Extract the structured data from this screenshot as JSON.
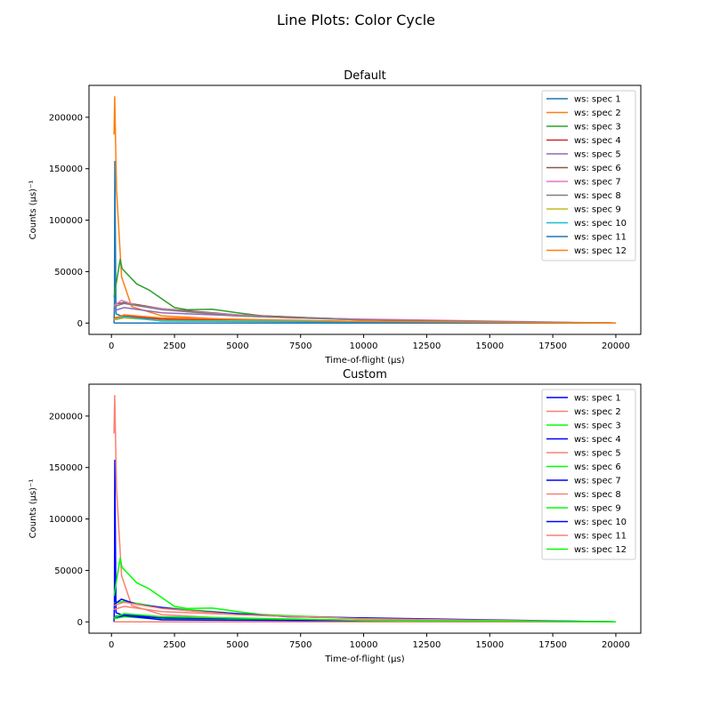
{
  "figure_title": "Line Plots: Color Cycle",
  "chart_data": [
    {
      "type": "line",
      "title": "Default",
      "xlabel": "Time-of-flight (μs)",
      "ylabel": "Counts (μs)⁻¹",
      "xlim": [
        -890,
        20990
      ],
      "ylim": [
        -11000,
        231000
      ],
      "xticks": [
        0,
        2500,
        5000,
        7500,
        10000,
        12500,
        15000,
        17500,
        20000
      ],
      "yticks": [
        0,
        50000,
        100000,
        150000,
        200000
      ],
      "grid": false,
      "legend_position": "top-right",
      "colors": [
        "#1f77b4",
        "#ff7f0e",
        "#2ca02c",
        "#d62728",
        "#9467bd",
        "#8c564b",
        "#e377c2",
        "#7f7f7f",
        "#bcbd22",
        "#17becf",
        "#1f77b4",
        "#ff7f0e"
      ],
      "series_ref": "series"
    },
    {
      "type": "line",
      "title": "Custom",
      "xlabel": "Time-of-flight (μs)",
      "ylabel": "Counts (μs)⁻¹",
      "xlim": [
        -890,
        20990
      ],
      "ylim": [
        -11000,
        231000
      ],
      "xticks": [
        0,
        2500,
        5000,
        7500,
        10000,
        12500,
        15000,
        17500,
        20000
      ],
      "yticks": [
        0,
        50000,
        100000,
        150000,
        200000
      ],
      "grid": false,
      "legend_position": "top-right",
      "colors": [
        "#0000ff",
        "#fa8072",
        "#00ff00",
        "#0000ff",
        "#fa8072",
        "#00ff00",
        "#0000ff",
        "#fa8072",
        "#00ff00",
        "#0000ff",
        "#fa8072",
        "#00ff00"
      ],
      "series_ref": "series"
    }
  ],
  "series": [
    {
      "name": "ws: spec 1",
      "points": [
        [
          100,
          0
        ],
        [
          120,
          20000
        ],
        [
          135,
          157000
        ],
        [
          180,
          9000
        ],
        [
          500,
          6000
        ],
        [
          2500,
          3000
        ],
        [
          10000,
          800
        ],
        [
          20000,
          0
        ]
      ]
    },
    {
      "name": "ws: spec 2",
      "points": [
        [
          100,
          183000
        ],
        [
          130,
          220000
        ],
        [
          200,
          130000
        ],
        [
          400,
          45000
        ],
        [
          800,
          16000
        ],
        [
          2000,
          7000
        ],
        [
          5000,
          3000
        ],
        [
          12000,
          1000
        ],
        [
          20000,
          0
        ]
      ]
    },
    {
      "name": "ws: spec 3",
      "points": [
        [
          100,
          25000
        ],
        [
          300,
          55000
        ],
        [
          350,
          62000
        ],
        [
          420,
          53000
        ],
        [
          1000,
          38000
        ],
        [
          1500,
          32000
        ],
        [
          2500,
          15000
        ],
        [
          3000,
          13000
        ],
        [
          4000,
          13500
        ],
        [
          5000,
          10000
        ],
        [
          6000,
          7000
        ],
        [
          8000,
          5000
        ],
        [
          12000,
          2000
        ],
        [
          20000,
          0
        ]
      ]
    },
    {
      "name": "ws: spec 4",
      "points": [
        [
          100,
          5000
        ],
        [
          500,
          7000
        ],
        [
          2000,
          4000
        ],
        [
          8000,
          1500
        ],
        [
          20000,
          0
        ]
      ]
    },
    {
      "name": "ws: spec 5",
      "points": [
        [
          100,
          12000
        ],
        [
          500,
          15000
        ],
        [
          2000,
          10000
        ],
        [
          6000,
          6000
        ],
        [
          10000,
          3000
        ],
        [
          20000,
          0
        ]
      ]
    },
    {
      "name": "ws: spec 6",
      "points": [
        [
          100,
          18000
        ],
        [
          500,
          20000
        ],
        [
          2000,
          14000
        ],
        [
          5000,
          8000
        ],
        [
          8000,
          5000
        ],
        [
          12000,
          2000
        ],
        [
          20000,
          0
        ]
      ]
    },
    {
      "name": "ws: spec 7",
      "points": [
        [
          100,
          17000
        ],
        [
          400,
          22000
        ],
        [
          1000,
          17000
        ],
        [
          3000,
          11000
        ],
        [
          7000,
          5000
        ],
        [
          20000,
          0
        ]
      ]
    },
    {
      "name": "ws: spec 8",
      "points": [
        [
          100,
          16000
        ],
        [
          500,
          19000
        ],
        [
          2000,
          13000
        ],
        [
          5000,
          7000
        ],
        [
          10000,
          3000
        ],
        [
          20000,
          0
        ]
      ]
    },
    {
      "name": "ws: spec 9",
      "points": [
        [
          100,
          3000
        ],
        [
          500,
          5000
        ],
        [
          2000,
          2500
        ],
        [
          20000,
          0
        ]
      ]
    },
    {
      "name": "ws: spec 10",
      "points": [
        [
          100,
          4000
        ],
        [
          500,
          6000
        ],
        [
          2000,
          2000
        ],
        [
          20000,
          0
        ]
      ]
    },
    {
      "name": "ws: spec 11",
      "points": [
        [
          100,
          0
        ],
        [
          20000,
          0
        ]
      ]
    },
    {
      "name": "ws: spec 12",
      "points": [
        [
          100,
          4000
        ],
        [
          500,
          8000
        ],
        [
          2000,
          5000
        ],
        [
          10000,
          1500
        ],
        [
          20000,
          0
        ]
      ]
    }
  ]
}
